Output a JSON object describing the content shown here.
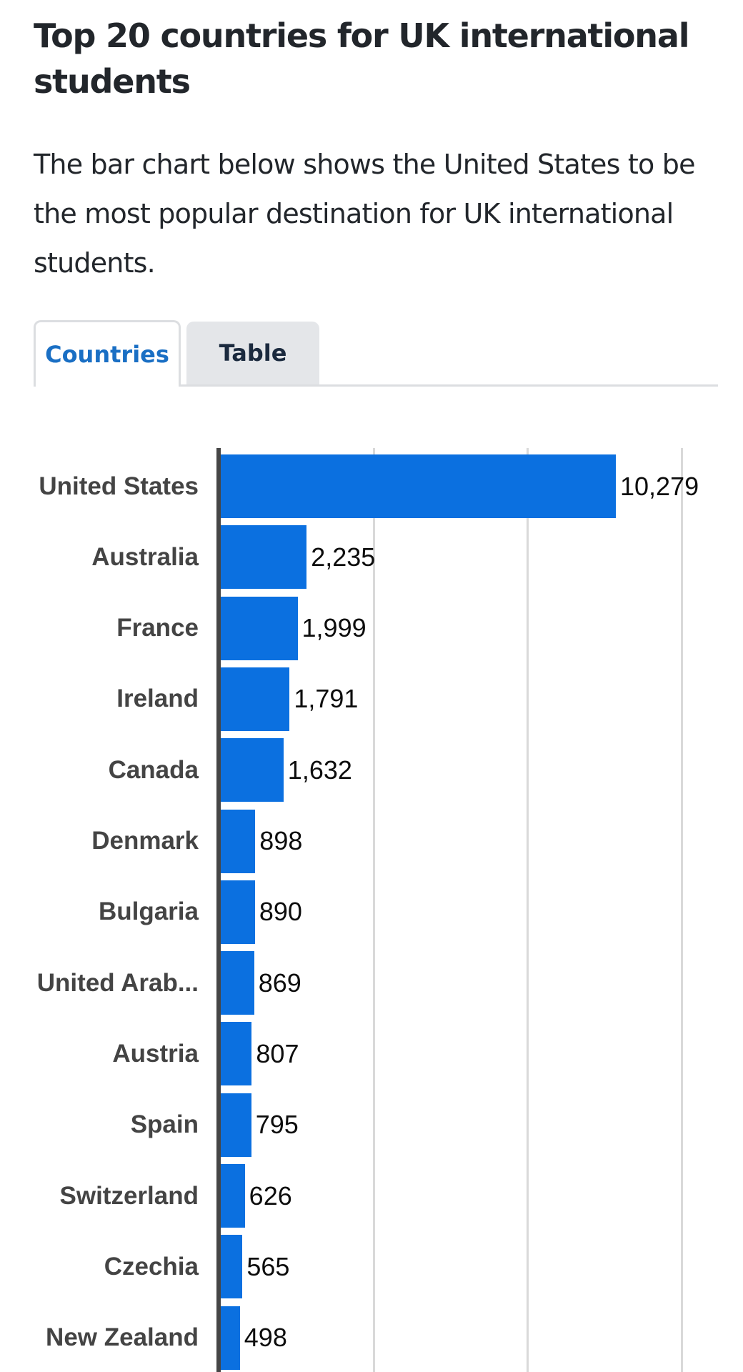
{
  "header": {
    "title": "Top 20 countries for UK international students",
    "description": "The bar chart below shows the United States to be the most popular destination for UK international students."
  },
  "tabs": [
    {
      "label": "Countries",
      "active": true
    },
    {
      "label": "Table",
      "active": false
    }
  ],
  "colors": {
    "bar": "#0b70e0",
    "active_tab_text": "#1a6fc4",
    "inactive_tab_bg": "#e4e6e9",
    "axis": "#464646",
    "gridline": "#d9d9d9"
  },
  "chart_data": {
    "type": "bar",
    "orientation": "horizontal",
    "title": "Top 20 countries for UK international students",
    "xlabel": "",
    "ylabel": "",
    "xlim": [
      0,
      12000
    ],
    "gridlines_x": [
      4000,
      8000,
      12000
    ],
    "grid": true,
    "legend": null,
    "categories": [
      "United States",
      "Australia",
      "France",
      "Ireland",
      "Canada",
      "Denmark",
      "Bulgaria",
      "United Arab...",
      "Austria",
      "Spain",
      "Switzerland",
      "Czechia",
      "New Zealand"
    ],
    "values": [
      10279,
      2235,
      1999,
      1791,
      1632,
      898,
      890,
      869,
      807,
      795,
      626,
      565,
      498
    ],
    "value_labels": [
      "10,279",
      "2,235",
      "1,999",
      "1,791",
      "1,632",
      "898",
      "890",
      "869",
      "807",
      "795",
      "626",
      "565",
      "498"
    ]
  }
}
